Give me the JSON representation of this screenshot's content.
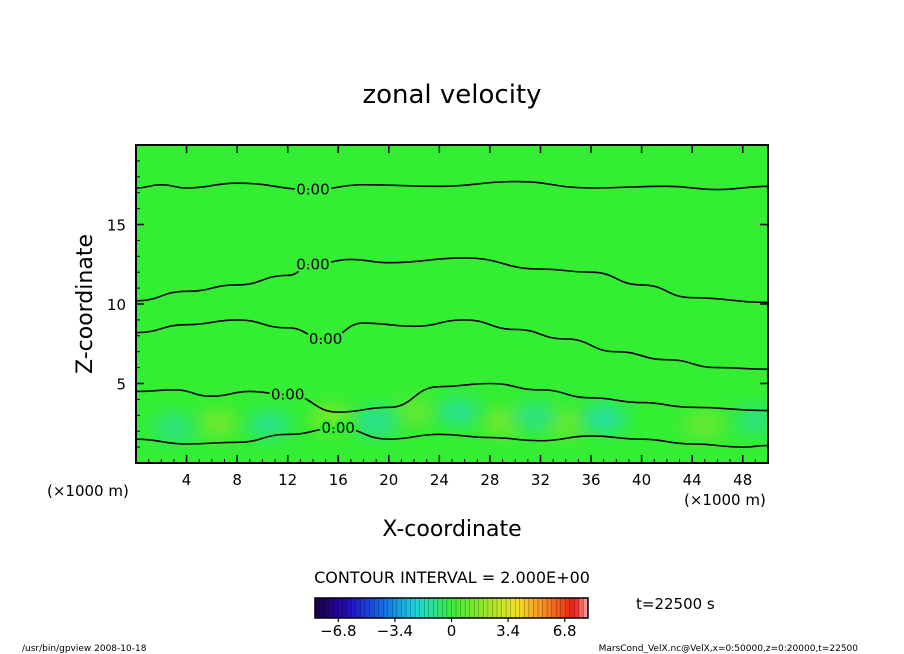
{
  "chart_data": {
    "type": "heatmap",
    "title": "zonal velocity",
    "xlabel": "X-coordinate",
    "ylabel": "Z-coordinate",
    "x_unit_left": "(×1000 m)",
    "x_unit_right": "(×1000 m)",
    "xlim": [
      0,
      50
    ],
    "ylim": [
      0,
      20
    ],
    "x_ticks": [
      "4",
      "8",
      "12",
      "16",
      "20",
      "24",
      "28",
      "32",
      "36",
      "40",
      "44",
      "48"
    ],
    "y_ticks": [
      "5",
      "10",
      "15"
    ],
    "field_background_color": "#33ee33",
    "contour_lines": [
      {
        "label": "0.00",
        "x": [
          0,
          2,
          4,
          8,
          14,
          18,
          24,
          30,
          36,
          42,
          46,
          50
        ],
        "y": [
          17.3,
          17.5,
          17.3,
          17.6,
          17.2,
          17.5,
          17.4,
          17.7,
          17.3,
          17.4,
          17.2,
          17.4
        ]
      },
      {
        "label": "0.00",
        "x": [
          0,
          4,
          8,
          12,
          14,
          17,
          20,
          26,
          32,
          36,
          40,
          44,
          50
        ],
        "y": [
          10.2,
          10.8,
          11.2,
          11.8,
          12.5,
          12.8,
          12.6,
          12.9,
          12.2,
          12.0,
          11.2,
          10.4,
          10.1
        ]
      },
      {
        "label": "0.00",
        "x": [
          0,
          4,
          8,
          12,
          15,
          18,
          22,
          26,
          30,
          34,
          38,
          42,
          46,
          50
        ],
        "y": [
          8.2,
          8.7,
          9.0,
          8.5,
          7.8,
          8.8,
          8.6,
          9.0,
          8.4,
          7.8,
          7.0,
          6.5,
          6.0,
          5.9
        ]
      },
      {
        "label": "0.00",
        "x": [
          0,
          3,
          6,
          9,
          12,
          16,
          20,
          24,
          28,
          32,
          36,
          40,
          44,
          50
        ],
        "y": [
          4.5,
          4.6,
          4.2,
          4.5,
          4.3,
          3.2,
          3.5,
          4.8,
          5.0,
          4.6,
          4.1,
          3.8,
          3.5,
          3.3
        ]
      },
      {
        "label": "0.00",
        "x": [
          0,
          4,
          8,
          12,
          16,
          20,
          24,
          28,
          32,
          36,
          40,
          44,
          48,
          50
        ],
        "y": [
          1.5,
          1.2,
          1.3,
          1.8,
          2.2,
          1.5,
          1.8,
          1.6,
          1.4,
          1.7,
          1.5,
          1.2,
          1.0,
          1.1
        ]
      }
    ],
    "warm_patches": [
      {
        "x": 6.5,
        "y": 2.5,
        "value": 1.5
      },
      {
        "x": 15.5,
        "y": 2.8,
        "value": 1.8
      },
      {
        "x": 22,
        "y": 3.2,
        "value": 1.2
      },
      {
        "x": 29,
        "y": 2.6,
        "value": 1.6
      },
      {
        "x": 34,
        "y": 2.5,
        "value": 1.4
      },
      {
        "x": 45,
        "y": 2.4,
        "value": 1.3
      }
    ],
    "cool_patches": [
      {
        "x": 3,
        "y": 2.2,
        "value": -1.2
      },
      {
        "x": 10.5,
        "y": 2.4,
        "value": -1.4
      },
      {
        "x": 19,
        "y": 2.6,
        "value": -1.6
      },
      {
        "x": 25.5,
        "y": 3.2,
        "value": -1.5
      },
      {
        "x": 31.5,
        "y": 2.9,
        "value": -1.3
      },
      {
        "x": 37,
        "y": 2.8,
        "value": -1.8
      },
      {
        "x": 49,
        "y": 2.7,
        "value": -1.2
      }
    ]
  },
  "contour_interval": "CONTOUR INTERVAL = 2.000E+00",
  "time_label": "t=22500 s",
  "colorbar": {
    "tick_labels": [
      "−6.8",
      "−3.4",
      "0",
      "3.4",
      "6.8"
    ],
    "tick_values": [
      -6.8,
      -3.4,
      0,
      3.4,
      6.8
    ],
    "range": [
      -8.2,
      8.2
    ]
  },
  "footer": {
    "left": "/usr/bin/gpview  2008-10-18",
    "right": "MarsCond_VelX.nc@VelX,x=0:50000,z=0:20000,t=22500"
  }
}
